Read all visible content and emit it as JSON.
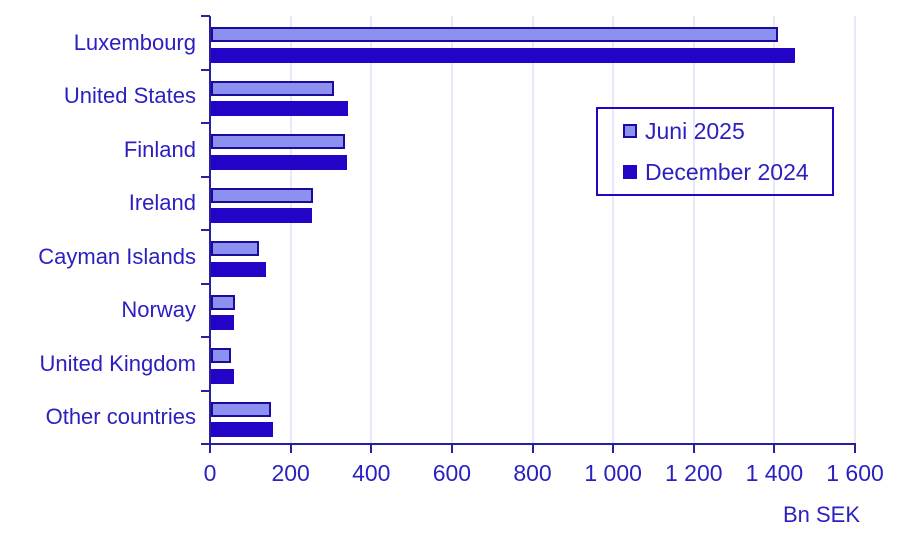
{
  "chart_data": {
    "type": "bar",
    "orientation": "horizontal",
    "title": "",
    "categories": [
      "Luxembourg",
      "United States",
      "Finland",
      "Ireland",
      "Cayman Islands",
      "Norway",
      "United Kingdom",
      "Other countries"
    ],
    "series": [
      {
        "name": "Juni 2025",
        "values": [
          1410,
          308,
          335,
          256,
          122,
          62,
          52,
          151
        ]
      },
      {
        "name": "December 2024",
        "values": [
          1450,
          342,
          340,
          253,
          139,
          60,
          59,
          156
        ]
      }
    ],
    "xlabel": "Bn SEK",
    "ylabel": "",
    "xlim": [
      0,
      1600
    ],
    "x_ticks": [
      0,
      200,
      400,
      600,
      800,
      1000,
      1200,
      1400,
      1600
    ],
    "x_tick_labels": [
      "0",
      "200",
      "400",
      "600",
      "800",
      "1 000",
      "1 200",
      "1 400",
      "1 600"
    ],
    "grid": "vertical",
    "legend_position": "inside-right"
  },
  "colors": {
    "series_light_fill": "#8C91F0",
    "series_light_border": "#1C0A9C",
    "series_dark": "#2104C6",
    "text": "#2B1FC0",
    "axis": "#28209E",
    "grid": "#E9E8F8",
    "legend_border": "#2104C6",
    "background": "#FFFFFF"
  }
}
